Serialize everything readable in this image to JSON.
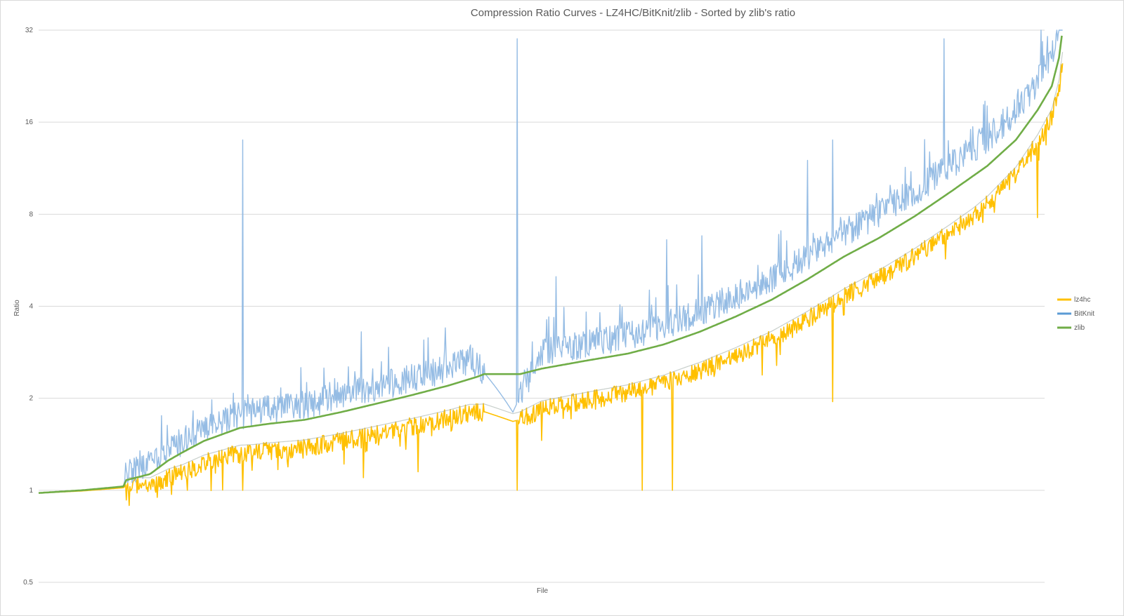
{
  "chart_data": {
    "type": "line",
    "title": "Compression Ratio Curves - LZ4HC/BitKnit/zlib - Sorted by zlib's ratio",
    "xlabel": "File",
    "ylabel": "Ratio",
    "y_scale": "log2",
    "ylim": [
      0.5,
      32
    ],
    "y_ticks": [
      "0.5",
      "1",
      "2",
      "4",
      "8",
      "16",
      "32"
    ],
    "y_tick_values": [
      0.5,
      1,
      2,
      4,
      8,
      16,
      32
    ],
    "x_range": [
      0,
      1400
    ],
    "grid": true,
    "legend_position": "right",
    "series": [
      {
        "name": "lz4hc",
        "color": "#ffc000"
      },
      {
        "name": "BitKnit",
        "color": "#5b9bd5"
      },
      {
        "name": "zlib",
        "color": "#70ad47"
      }
    ],
    "zlib_curve": [
      [
        0,
        0.98
      ],
      [
        60,
        1.0
      ],
      [
        100,
        1.02
      ],
      [
        118,
        1.03
      ],
      [
        122,
        1.08
      ],
      [
        155,
        1.13
      ],
      [
        180,
        1.25
      ],
      [
        200,
        1.33
      ],
      [
        230,
        1.45
      ],
      [
        280,
        1.6
      ],
      [
        320,
        1.65
      ],
      [
        370,
        1.7
      ],
      [
        420,
        1.8
      ],
      [
        470,
        1.92
      ],
      [
        520,
        2.05
      ],
      [
        570,
        2.2
      ],
      [
        610,
        2.35
      ],
      [
        620,
        2.4
      ],
      [
        670,
        2.4
      ],
      [
        700,
        2.5
      ],
      [
        760,
        2.65
      ],
      [
        820,
        2.8
      ],
      [
        870,
        3.0
      ],
      [
        920,
        3.3
      ],
      [
        970,
        3.7
      ],
      [
        1020,
        4.2
      ],
      [
        1070,
        4.9
      ],
      [
        1120,
        5.8
      ],
      [
        1170,
        6.7
      ],
      [
        1220,
        7.9
      ],
      [
        1270,
        9.5
      ],
      [
        1320,
        11.5
      ],
      [
        1360,
        14.0
      ],
      [
        1390,
        17.5
      ],
      [
        1410,
        21.0
      ],
      [
        1420,
        26.0
      ],
      [
        1425,
        32.0
      ]
    ],
    "bitknit_ratio_to_zlib": [
      [
        0,
        1.0
      ],
      [
        118,
        1.0
      ],
      [
        122,
        1.05
      ],
      [
        200,
        1.08
      ],
      [
        300,
        1.1
      ],
      [
        400,
        1.12
      ],
      [
        600,
        1.14
      ],
      [
        660,
        0.75
      ],
      [
        700,
        1.12
      ],
      [
        900,
        1.15
      ],
      [
        1100,
        1.18
      ],
      [
        1300,
        1.22
      ],
      [
        1425,
        1.25
      ]
    ],
    "lz4hc_ratio_to_zlib": [
      [
        0,
        1.0
      ],
      [
        118,
        0.99
      ],
      [
        122,
        0.96
      ],
      [
        200,
        0.86
      ],
      [
        300,
        0.82
      ],
      [
        450,
        0.8
      ],
      [
        600,
        0.78
      ],
      [
        660,
        0.7
      ],
      [
        700,
        0.74
      ],
      [
        900,
        0.75
      ],
      [
        1100,
        0.74
      ],
      [
        1300,
        0.74
      ],
      [
        1425,
        0.8
      ]
    ],
    "bitknit_spikes": [
      [
        284,
        14.0
      ],
      [
        449,
        3.3
      ],
      [
        566,
        3.4
      ],
      [
        666,
        30.0
      ],
      [
        720,
        5.0
      ],
      [
        874,
        6.6
      ],
      [
        923,
        6.8
      ],
      [
        1070,
        12.0
      ],
      [
        1105,
        14.0
      ],
      [
        1260,
        30.0
      ],
      [
        1395,
        32.0
      ]
    ],
    "lz4hc_dips": [
      [
        207,
        1.0
      ],
      [
        284,
        1.0
      ],
      [
        452,
        1.1
      ],
      [
        528,
        1.15
      ],
      [
        666,
        1.0
      ],
      [
        840,
        1.0
      ],
      [
        882,
        1.0
      ],
      [
        1105,
        1.95
      ],
      [
        1390,
        7.8
      ]
    ]
  }
}
